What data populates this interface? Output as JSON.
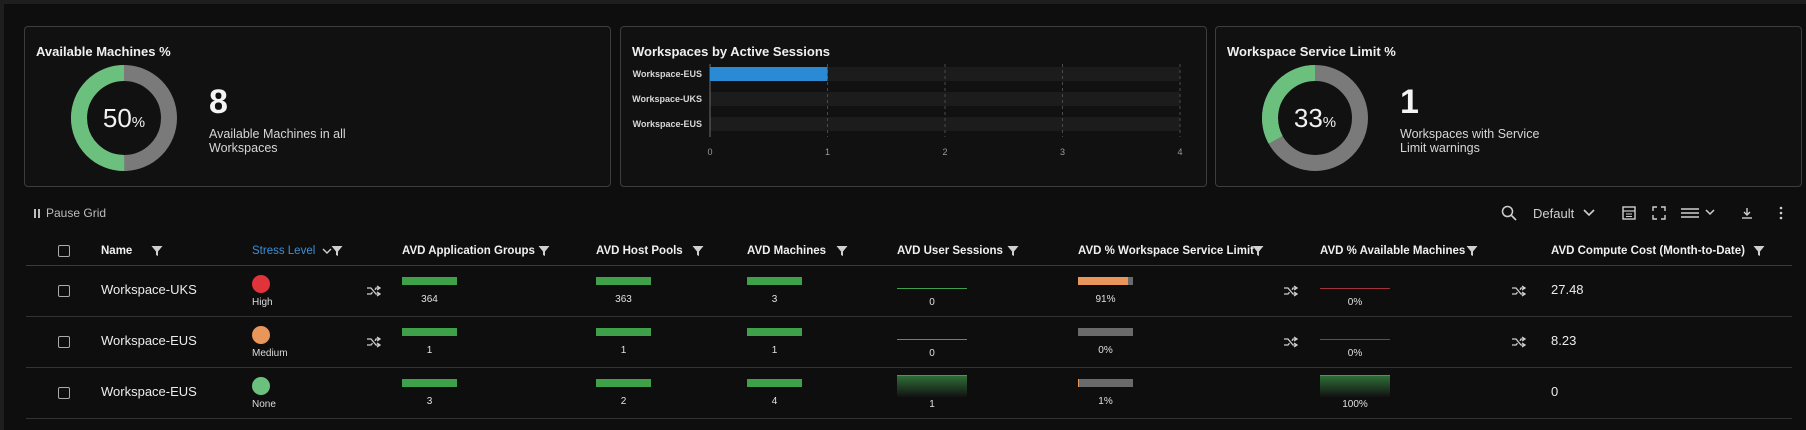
{
  "cards": {
    "available_machines": {
      "title": "Available Machines %",
      "percent_value": "50",
      "percent_sign": "%",
      "percent": 50,
      "count": "8",
      "description": "Available Machines in all Workspaces"
    },
    "sessions": {
      "title": "Workspaces by Active Sessions",
      "chart_data": {
        "type": "bar",
        "orientation": "horizontal",
        "categories": [
          "Workspace-EUS",
          "Workspace-UKS",
          "Workspace-EUS"
        ],
        "values": [
          1,
          0,
          0
        ],
        "xlim": [
          0,
          4
        ],
        "xticks": [
          "0",
          "1",
          "2",
          "3",
          "4"
        ],
        "bar_color": "#2a8ad4"
      }
    },
    "service_limit": {
      "title": "Workspace Service Limit %",
      "percent_value": "33",
      "percent_sign": "%",
      "percent": 33,
      "count": "1",
      "description": "Workspaces with Service Limit warnings"
    }
  },
  "toolbar": {
    "pause_label": "Pause Grid",
    "view_label": "Default"
  },
  "grid": {
    "columns": {
      "name": "Name",
      "stress": "Stress Level",
      "app_groups": "AVD Application Groups",
      "host_pools": "AVD Host Pools",
      "machines": "AVD Machines",
      "user_sessions": "AVD User Sessions",
      "service_limit": "AVD % Workspace Service Limit",
      "available_machines": "AVD % Available Machines",
      "compute_cost": "AVD Compute Cost (Month-to-Date)"
    },
    "rows": [
      {
        "name": "Workspace-UKS",
        "stress": "High",
        "stress_color": "#e0343a",
        "app_groups": "364",
        "host_pools": "363",
        "machines": "3",
        "user_sessions": "0",
        "service_limit": "91%",
        "service_limit_value": 91,
        "available_machines": "0%",
        "available_machines_value": 0,
        "compute_cost": "27.48"
      },
      {
        "name": "Workspace-EUS",
        "stress": "Medium",
        "stress_color": "#e8965a",
        "app_groups": "1",
        "host_pools": "1",
        "machines": "1",
        "user_sessions": "0",
        "service_limit": "0%",
        "service_limit_value": 0,
        "available_machines": "0%",
        "available_machines_value": 0,
        "compute_cost": "8.23"
      },
      {
        "name": "Workspace-EUS",
        "stress": "None",
        "stress_color": "#6cc07e",
        "app_groups": "3",
        "host_pools": "2",
        "machines": "4",
        "user_sessions": "1",
        "service_limit": "1%",
        "service_limit_value": 1,
        "available_machines": "100%",
        "available_machines_value": 100,
        "compute_cost": "0"
      }
    ]
  },
  "colors": {
    "accent_green": "#3ea14a",
    "donut_green": "#6cc07e",
    "donut_grey": "#7a7a7a",
    "orange": "#e8965a",
    "blue_header": "#3b8fd9"
  }
}
